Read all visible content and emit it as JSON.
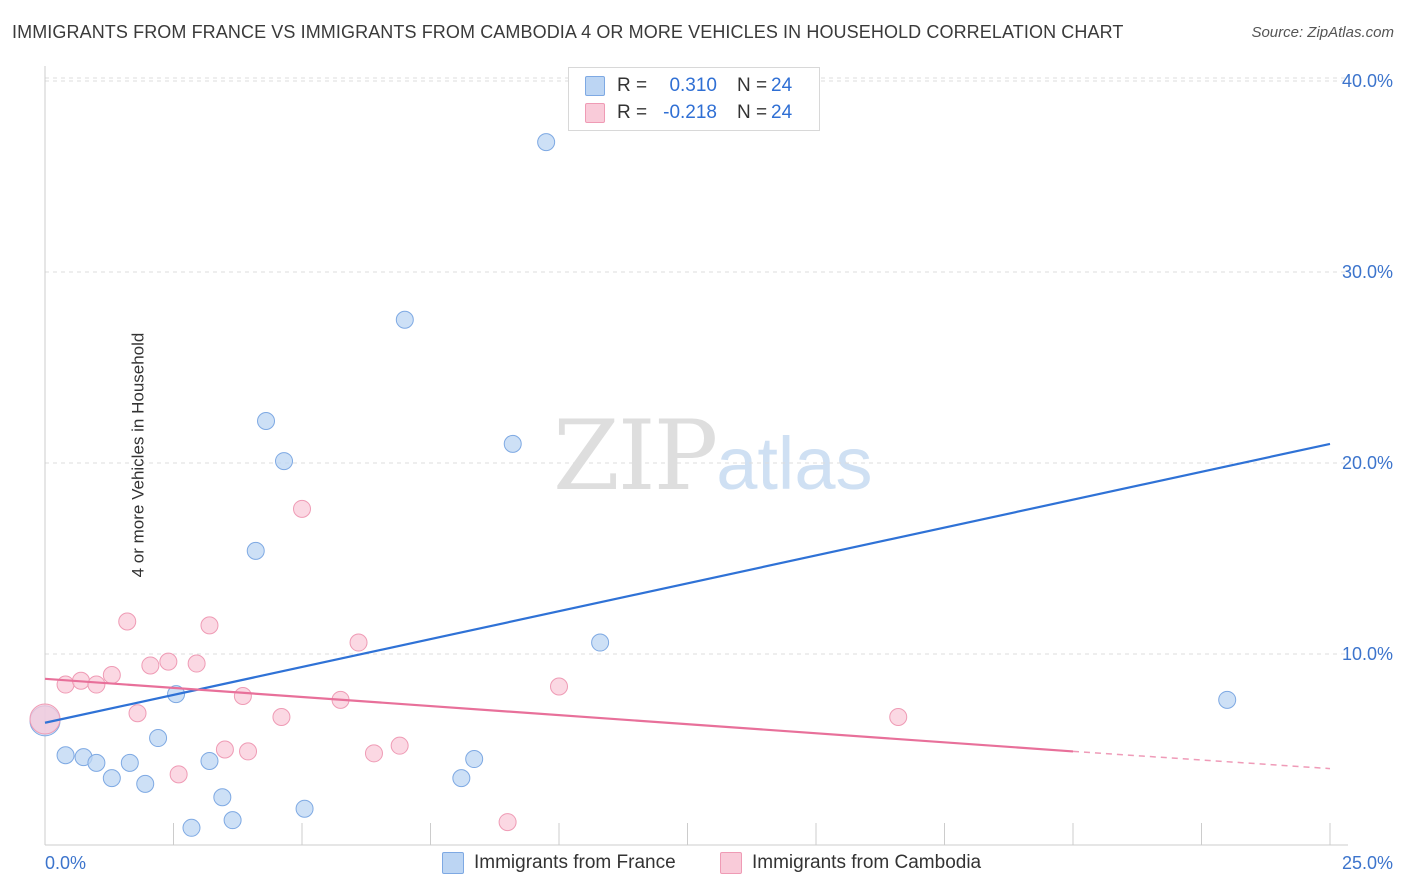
{
  "header": {
    "title": "IMMIGRANTS FROM FRANCE VS IMMIGRANTS FROM CAMBODIA 4 OR MORE VEHICLES IN HOUSEHOLD CORRELATION CHART",
    "source": "Source: ZipAtlas.com"
  },
  "watermark": {
    "zip": "ZIP",
    "atlas": "atlas"
  },
  "legend": {
    "france": {
      "r_label": "R =",
      "r_value": "0.310",
      "n_label": "N =",
      "n_value": "24"
    },
    "cambodia": {
      "r_label": "R =",
      "r_value": "-0.218",
      "n_label": "N =",
      "n_value": "24"
    }
  },
  "bottom_legend": {
    "france_label": "Immigrants from France",
    "cambodia_label": "Immigrants from Cambodia"
  },
  "colors": {
    "france_fill": "#bcd5f3",
    "france_stroke": "#7ea9e3",
    "france_line": "#2f72d6",
    "cambodia_fill": "#f9cbd9",
    "cambodia_stroke": "#ef9bb5",
    "cambodia_line": "#e8709a",
    "tick_label": "#3c74cc",
    "grid": "#dddddd"
  },
  "chart_data": {
    "type": "scatter",
    "title": "IMMIGRANTS FROM FRANCE VS IMMIGRANTS FROM CAMBODIA 4 OR MORE VEHICLES IN HOUSEHOLD CORRELATION CHART",
    "xlabel": "",
    "ylabel": "4 or more Vehicles in Household",
    "xlim": [
      0,
      25
    ],
    "ylim": [
      0,
      40
    ],
    "x_ticks": [
      0,
      25
    ],
    "x_tick_labels": [
      "0.0%",
      "25.0%"
    ],
    "y_ticks": [
      10,
      20,
      30,
      40
    ],
    "y_tick_labels": [
      "10.0%",
      "20.0%",
      "30.0%",
      "40.0%"
    ],
    "grid": true,
    "legend_position": "top-center",
    "series": [
      {
        "name": "Immigrants from France",
        "color": "#2f72d6",
        "points": [
          [
            0.0,
            6.5
          ],
          [
            0.4,
            4.7
          ],
          [
            0.75,
            4.6
          ],
          [
            1.0,
            4.3
          ],
          [
            1.3,
            3.5
          ],
          [
            1.65,
            4.3
          ],
          [
            1.95,
            3.2
          ],
          [
            2.2,
            5.6
          ],
          [
            2.55,
            7.9
          ],
          [
            2.85,
            0.9
          ],
          [
            3.2,
            4.4
          ],
          [
            3.45,
            2.5
          ],
          [
            3.65,
            1.3
          ],
          [
            4.1,
            15.4
          ],
          [
            4.3,
            22.2
          ],
          [
            4.65,
            20.1
          ],
          [
            5.05,
            1.9
          ],
          [
            7.0,
            27.5
          ],
          [
            8.1,
            3.5
          ],
          [
            8.35,
            4.5
          ],
          [
            9.1,
            21.0
          ],
          [
            9.75,
            36.8
          ],
          [
            10.8,
            10.6
          ],
          [
            23.0,
            7.6
          ]
        ],
        "trend": {
          "x": [
            0,
            25
          ],
          "y": [
            6.4,
            21.0
          ]
        }
      },
      {
        "name": "Immigrants from Cambodia",
        "color": "#e8709a",
        "points": [
          [
            0.0,
            6.6
          ],
          [
            0.4,
            8.4
          ],
          [
            0.7,
            8.6
          ],
          [
            1.0,
            8.4
          ],
          [
            1.3,
            8.9
          ],
          [
            1.6,
            11.7
          ],
          [
            1.8,
            6.9
          ],
          [
            2.05,
            9.4
          ],
          [
            2.4,
            9.6
          ],
          [
            2.6,
            3.7
          ],
          [
            2.95,
            9.5
          ],
          [
            3.2,
            11.5
          ],
          [
            3.5,
            5.0
          ],
          [
            3.85,
            7.8
          ],
          [
            3.95,
            4.9
          ],
          [
            4.6,
            6.7
          ],
          [
            5.0,
            17.6
          ],
          [
            5.75,
            7.6
          ],
          [
            6.1,
            10.6
          ],
          [
            6.4,
            4.8
          ],
          [
            6.9,
            5.2
          ],
          [
            9.0,
            1.2
          ],
          [
            10.0,
            8.3
          ],
          [
            16.6,
            6.7
          ]
        ],
        "trend": {
          "x": [
            0,
            20
          ],
          "y": [
            8.7,
            4.9
          ]
        },
        "trend_dashed": {
          "x": [
            20,
            25
          ],
          "y": [
            4.9,
            4.0
          ]
        }
      }
    ]
  }
}
